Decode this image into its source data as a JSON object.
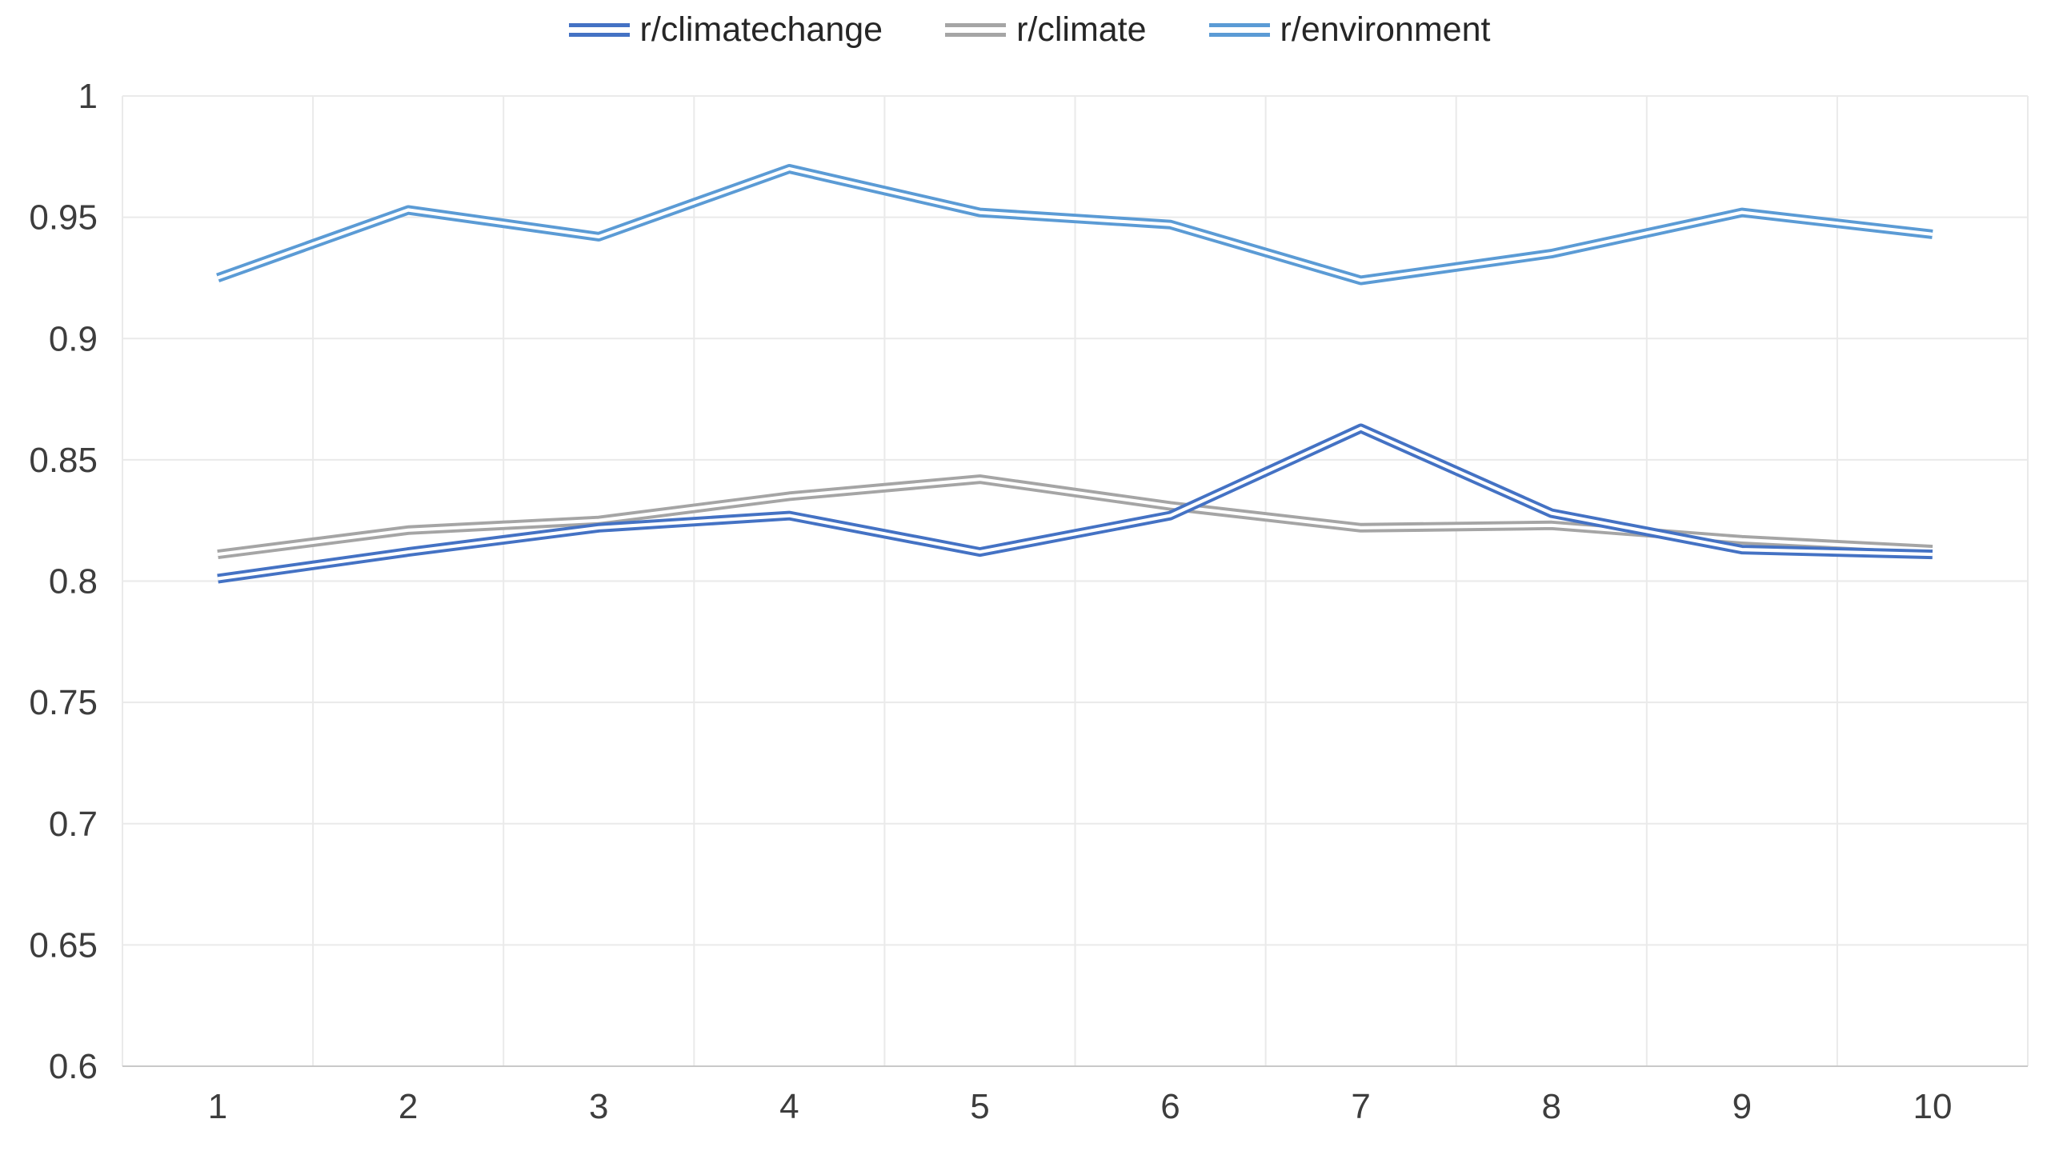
{
  "chart_data": {
    "type": "line",
    "title": "",
    "xlabel": "",
    "ylabel": "",
    "x": [
      1,
      2,
      3,
      4,
      5,
      6,
      7,
      8,
      9,
      10
    ],
    "xtick_labels": [
      "1",
      "2",
      "3",
      "4",
      "5",
      "6",
      "7",
      "8",
      "9",
      "10"
    ],
    "ylim": [
      0.6,
      1.0
    ],
    "ytick_values": [
      1,
      0.95,
      0.9,
      0.85,
      0.8,
      0.75,
      0.7,
      0.65,
      0.6
    ],
    "ytick_labels": [
      "1",
      "0.95",
      "0.9",
      "0.85",
      "0.8",
      "0.75",
      "0.7",
      "0.65",
      "0.6"
    ],
    "grid": true,
    "legend_position": "top",
    "line_style": "double-stroke",
    "series": [
      {
        "name": "r/climatechange",
        "color": "#4472C4",
        "values": [
          0.801,
          0.812,
          0.822,
          0.827,
          0.812,
          0.827,
          0.863,
          0.828,
          0.813,
          0.811
        ]
      },
      {
        "name": "r/climate",
        "color": "#A5A5A5",
        "values": [
          0.811,
          0.821,
          0.825,
          0.835,
          0.842,
          0.831,
          0.822,
          0.823,
          0.817,
          0.813
        ]
      },
      {
        "name": "r/environment",
        "color": "#5B9BD5",
        "values": [
          0.925,
          0.953,
          0.942,
          0.97,
          0.952,
          0.947,
          0.924,
          0.935,
          0.952,
          0.943
        ]
      }
    ]
  },
  "style": {
    "background": "#ffffff",
    "grid_color": "#eaeaea",
    "axis_line_color": "#c9c9c9",
    "tick_label_color": "#3d3d3d",
    "legend_text_color": "#262626"
  }
}
